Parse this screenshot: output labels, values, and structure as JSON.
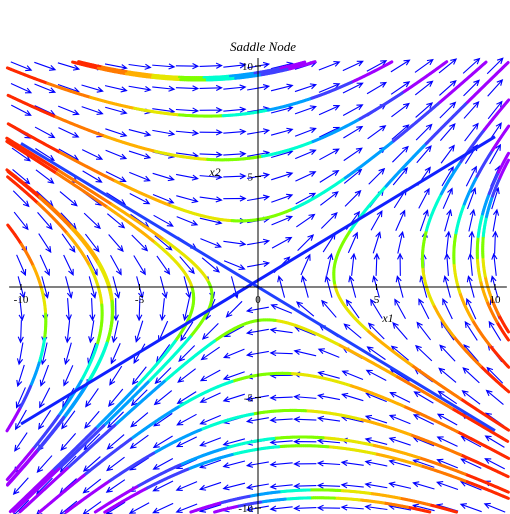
{
  "chart_data": {
    "type": "vector-field",
    "title": "Saddle Node",
    "xlabel": "x1",
    "ylabel": "x2",
    "xlim": [
      -10.5,
      10.5
    ],
    "ylim": [
      -10,
      10
    ],
    "x_ticks": [
      -10,
      -5,
      0,
      5,
      10
    ],
    "y_ticks": [
      -10,
      -5,
      5,
      10
    ],
    "x_tick_labels": [
      "-10",
      "-5",
      "0",
      "5",
      "10"
    ],
    "y_tick_labels": [
      "-10",
      "-5",
      "5",
      "10"
    ],
    "arrow_color": "#0000ff",
    "grid": false,
    "field": "dx1/dt = x1, dx2/dt = -x2 (rotated: eigenvectors along y = x and y = -0.6x)",
    "trajectory_colors": [
      "#ff2a00",
      "#ff7a00",
      "#ffb000",
      "#e6e600",
      "#7fff00",
      "#00ffd0",
      "#00a0ff",
      "#4040ff",
      "#a000ff"
    ],
    "trajectories": [
      {
        "name": "stable-manifold-left",
        "points": [
          [
            -10,
            6.5
          ],
          [
            0,
            0
          ]
        ]
      },
      {
        "name": "stable-manifold-right",
        "points": [
          [
            0,
            0
          ],
          [
            10,
            -6.5
          ]
        ]
      },
      {
        "name": "unstable-manifold",
        "points": [
          [
            -10,
            -6
          ],
          [
            10,
            6.5
          ]
        ]
      },
      {
        "name": "t1",
        "points": [
          [
            -10.5,
            8.5
          ],
          [
            -7,
            8.6
          ],
          [
            -4,
            9.2
          ],
          [
            -4,
            9.2
          ]
        ]
      },
      {
        "name": "t2",
        "points": [
          [
            -10.5,
            7.2
          ],
          [
            -7,
            6.9
          ],
          [
            -2.5,
            8
          ],
          [
            4,
            9.5
          ]
        ]
      },
      {
        "name": "t3",
        "points": [
          [
            -10.5,
            6.5
          ],
          [
            -6,
            5.2
          ],
          [
            -1.5,
            5.6
          ],
          [
            8,
            9.3
          ]
        ]
      },
      {
        "name": "t4",
        "points": [
          [
            -10.5,
            6.5
          ],
          [
            -5.5,
            4
          ],
          [
            -2.7,
            3.3
          ],
          [
            10,
            8.5
          ]
        ]
      },
      {
        "name": "t5",
        "points": [
          [
            -10.5,
            6.5
          ],
          [
            -4,
            2.5
          ],
          [
            -1,
            2.2
          ],
          [
            10,
            4.7
          ]
        ]
      },
      {
        "name": "t6",
        "points": [
          [
            -10.5,
            6.5
          ],
          [
            -6.5,
            2.5
          ],
          [
            -7,
            0
          ],
          [
            -10,
            -4
          ]
        ]
      },
      {
        "name": "t7",
        "points": [
          [
            -10.5,
            6.5
          ],
          [
            -3,
            1.8
          ],
          [
            -2.7,
            0
          ],
          [
            -10,
            -8
          ]
        ]
      }
    ]
  }
}
